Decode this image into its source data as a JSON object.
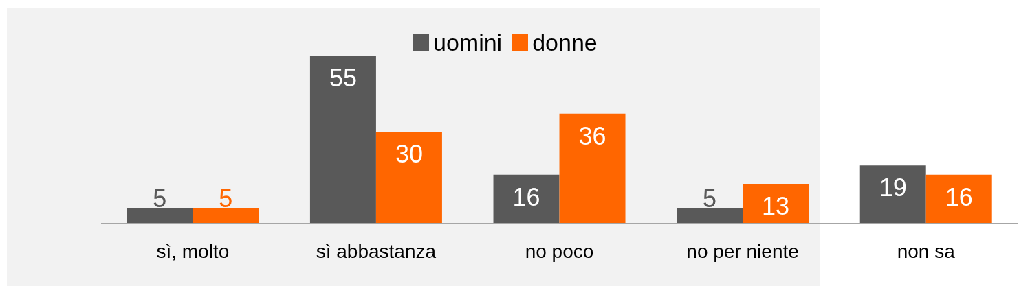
{
  "chart_data": {
    "type": "bar",
    "categories": [
      "sì, molto",
      "sì abbastanza",
      "no poco",
      "no per niente",
      "non sa"
    ],
    "series": [
      {
        "name": "uomini",
        "color": "#595959",
        "values": [
          5,
          55,
          16,
          5,
          19
        ]
      },
      {
        "name": "donne",
        "color": "#ff6600",
        "values": [
          5,
          30,
          36,
          13,
          16
        ]
      }
    ],
    "data_labels": true,
    "legend": "top",
    "grid": false,
    "bands": [
      {
        "axis": "x",
        "from": "sì, molto",
        "to": "no per niente",
        "color": "#f2f2f2"
      }
    ]
  }
}
